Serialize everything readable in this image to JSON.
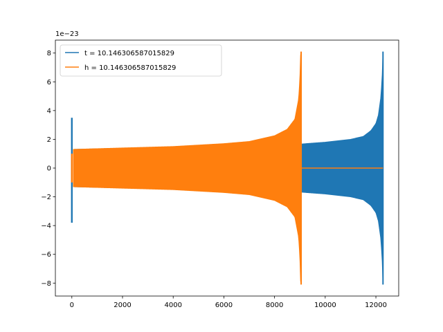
{
  "chart_data": {
    "type": "line",
    "title": "",
    "xlabel": "",
    "ylabel": "",
    "y_scale_label": "1e−23",
    "xlim": [
      -650,
      12900
    ],
    "ylim": [
      -8.9,
      8.9
    ],
    "x_ticks": [
      0,
      2000,
      4000,
      6000,
      8000,
      10000,
      12000
    ],
    "x_tick_labels": [
      "0",
      "2000",
      "4000",
      "6000",
      "8000",
      "10000",
      "12000"
    ],
    "y_ticks": [
      -8,
      -6,
      -4,
      -2,
      0,
      2,
      4,
      6,
      8
    ],
    "y_tick_labels": [
      "−8",
      "−6",
      "−4",
      "−2",
      "0",
      "2",
      "4",
      "6",
      "8"
    ],
    "grid": false,
    "legend_position": "upper-left",
    "series": [
      {
        "name": "t = 10.146306587015829",
        "color": "#1f77b4",
        "start_spike": {
          "x": 0,
          "y_max": 3.5,
          "y_min": -3.8
        },
        "envelope": {
          "x": [
            60,
            2000,
            4000,
            6000,
            8000,
            9000,
            9100,
            10000,
            11000,
            11500,
            11800,
            12000,
            12100,
            12200,
            12250,
            12280
          ],
          "amp": [
            1.3,
            1.38,
            1.43,
            1.5,
            1.6,
            1.67,
            1.68,
            1.8,
            2.0,
            2.2,
            2.6,
            3.1,
            3.7,
            5.0,
            6.5,
            8.1
          ]
        },
        "end_x": 12280
      },
      {
        "name": "h = 10.146306587015829",
        "color": "#ff7f0e",
        "start_spike": {
          "x": 0,
          "y_max": 1.0,
          "y_min": -1.0
        },
        "envelope": {
          "x": [
            60,
            2000,
            4000,
            6000,
            7000,
            8000,
            8500,
            8800,
            8950,
            9000,
            9030,
            9050
          ],
          "amp": [
            1.3,
            1.4,
            1.5,
            1.7,
            1.85,
            2.25,
            2.7,
            3.4,
            4.8,
            6.2,
            8.0,
            8.1
          ]
        },
        "end_x": 9050,
        "flat_after": {
          "x_start": 9050,
          "x_end": 12280,
          "y": 0
        }
      }
    ]
  }
}
